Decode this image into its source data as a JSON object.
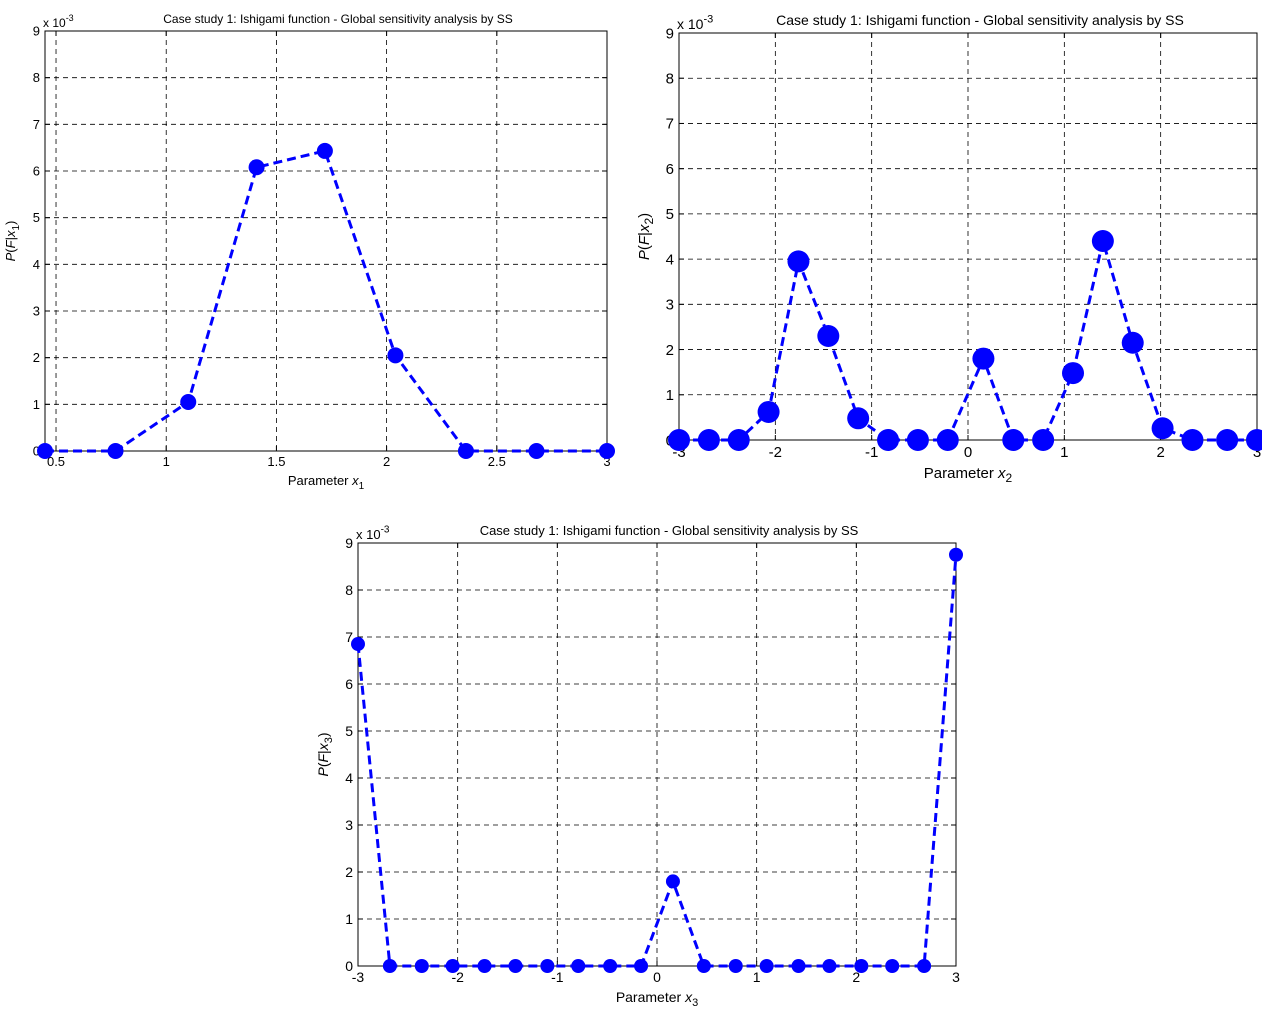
{
  "chart_data": [
    {
      "type": "line",
      "title": "Case study 1: Ishigami function - Global sensitivity analysis by SS",
      "xlabel_prefix": "Parameter ",
      "xlabel_var": "x",
      "xlabel_sub": "1",
      "ylabel": "P(F|x1)",
      "y_exponent_text": "x 10",
      "y_exponent_power": "-3",
      "xlim": [
        0.45,
        3.0
      ],
      "ylim": [
        0,
        9
      ],
      "xticks": [
        0.5,
        1,
        1.5,
        2,
        2.5,
        3
      ],
      "xtick_labels": [
        "0.5",
        "1",
        "1.5",
        "2",
        "2.5",
        "3"
      ],
      "yticks": [
        0,
        1,
        2,
        3,
        4,
        5,
        6,
        7,
        8,
        9
      ],
      "ytick_labels": [
        "0",
        "1",
        "2",
        "3",
        "4",
        "5",
        "6",
        "7",
        "8",
        "9"
      ],
      "grid": true,
      "line_color": "#0000ff",
      "line_style": "dashed",
      "marker": "circle",
      "series": [
        {
          "x": [
            0.45,
            0.77,
            1.1,
            1.41,
            1.72,
            2.04,
            2.36,
            2.68,
            3.0
          ],
          "y": [
            0,
            0,
            1.05,
            6.08,
            6.43,
            2.05,
            0,
            0,
            0
          ]
        }
      ]
    },
    {
      "type": "line",
      "title": "Case study 1: Ishigami function - Global sensitivity analysis by SS",
      "xlabel_prefix": "Parameter ",
      "xlabel_var": "x",
      "xlabel_sub": "2",
      "ylabel": "P(F|x2)",
      "y_exponent_text": "x 10",
      "y_exponent_power": "-3",
      "xlim": [
        -3,
        3
      ],
      "ylim": [
        0,
        9
      ],
      "xticks": [
        -3,
        -2,
        -1,
        0,
        1,
        2,
        3
      ],
      "xtick_labels": [
        "-3",
        "-2",
        "-1",
        "0",
        "1",
        "2",
        "3"
      ],
      "yticks": [
        0,
        1,
        2,
        3,
        4,
        5,
        6,
        7,
        8,
        9
      ],
      "ytick_labels": [
        "0",
        "1",
        "2",
        "3",
        "4",
        "5",
        "6",
        "7",
        "8",
        "9"
      ],
      "grid": true,
      "line_color": "#0000ff",
      "line_style": "dashed",
      "marker": "circle",
      "series": [
        {
          "x": [
            -3.0,
            -2.69,
            -2.38,
            -2.07,
            -1.76,
            -1.45,
            -1.14,
            -0.83,
            -0.52,
            -0.21,
            0.16,
            0.47,
            0.78,
            1.09,
            1.4,
            1.71,
            2.02,
            2.33,
            2.69,
            3.0
          ],
          "y": [
            0,
            0,
            0,
            0.62,
            3.95,
            2.3,
            0.48,
            0,
            0,
            0,
            1.8,
            0,
            0,
            1.48,
            4.4,
            2.15,
            0.26,
            0,
            0,
            0
          ]
        }
      ]
    },
    {
      "type": "line",
      "title": "Case study 1: Ishigami function - Global sensitivity analysis by SS",
      "xlabel_prefix": "Parameter ",
      "xlabel_var": "x",
      "xlabel_sub": "3",
      "ylabel": "P(F|x3)",
      "y_exponent_text": "x 10",
      "y_exponent_power": "-3",
      "xlim": [
        -3,
        3
      ],
      "ylim": [
        0,
        9
      ],
      "xticks": [
        -3,
        -2,
        -1,
        0,
        1,
        2,
        3
      ],
      "xtick_labels": [
        "-3",
        "-2",
        "-1",
        "0",
        "1",
        "2",
        "3"
      ],
      "yticks": [
        0,
        1,
        2,
        3,
        4,
        5,
        6,
        7,
        8,
        9
      ],
      "ytick_labels": [
        "0",
        "1",
        "2",
        "3",
        "4",
        "5",
        "6",
        "7",
        "8",
        "9"
      ],
      "grid": true,
      "line_color": "#0000ff",
      "line_style": "dashed",
      "marker": "circle",
      "series": [
        {
          "x": [
            -3.0,
            -2.68,
            -2.36,
            -2.05,
            -1.73,
            -1.42,
            -1.1,
            -0.79,
            -0.47,
            -0.16,
            0.16,
            0.47,
            0.79,
            1.1,
            1.42,
            1.73,
            2.05,
            2.36,
            2.68,
            3.0
          ],
          "y": [
            6.85,
            0,
            0,
            0,
            0,
            0,
            0,
            0,
            0,
            0,
            1.8,
            0,
            0,
            0,
            0,
            0,
            0,
            0,
            0,
            8.75
          ]
        }
      ]
    }
  ]
}
